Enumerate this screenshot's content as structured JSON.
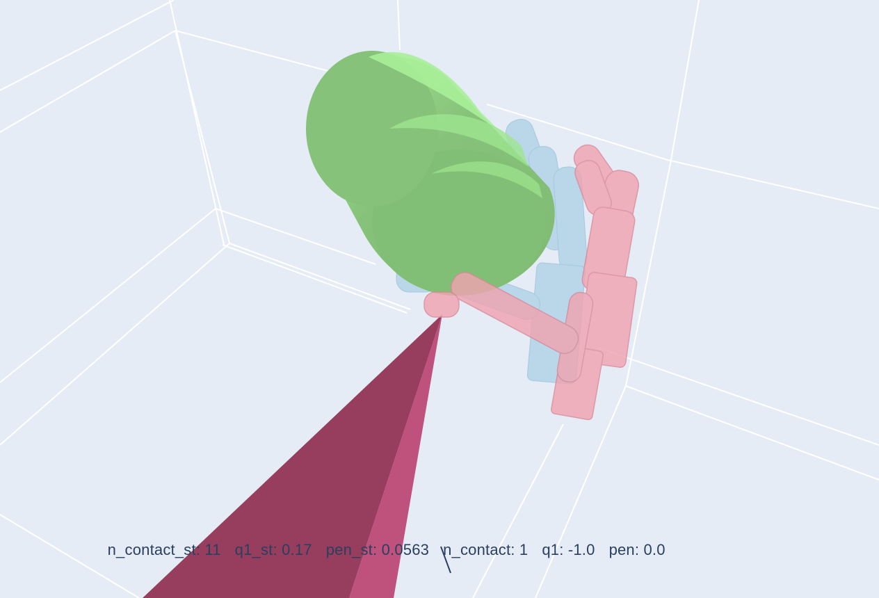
{
  "scene": {
    "background_color": "#e5ecf6",
    "grid_color": "#ffffff",
    "object_color": "#8ed87a",
    "hand_before_color": "#a9cfe3",
    "hand_after_color": "#efa3b0",
    "arm_color": "#9b3a5c"
  },
  "annotation": {
    "n_contact_st": "n_contact_st: 11",
    "q1_st": "q1_st: 0.17",
    "pen_st": "pen_st: 0.0563",
    "n_contact": "n_contact: 1",
    "q1": "q1: -1.0",
    "pen": "pen: 0.0"
  }
}
